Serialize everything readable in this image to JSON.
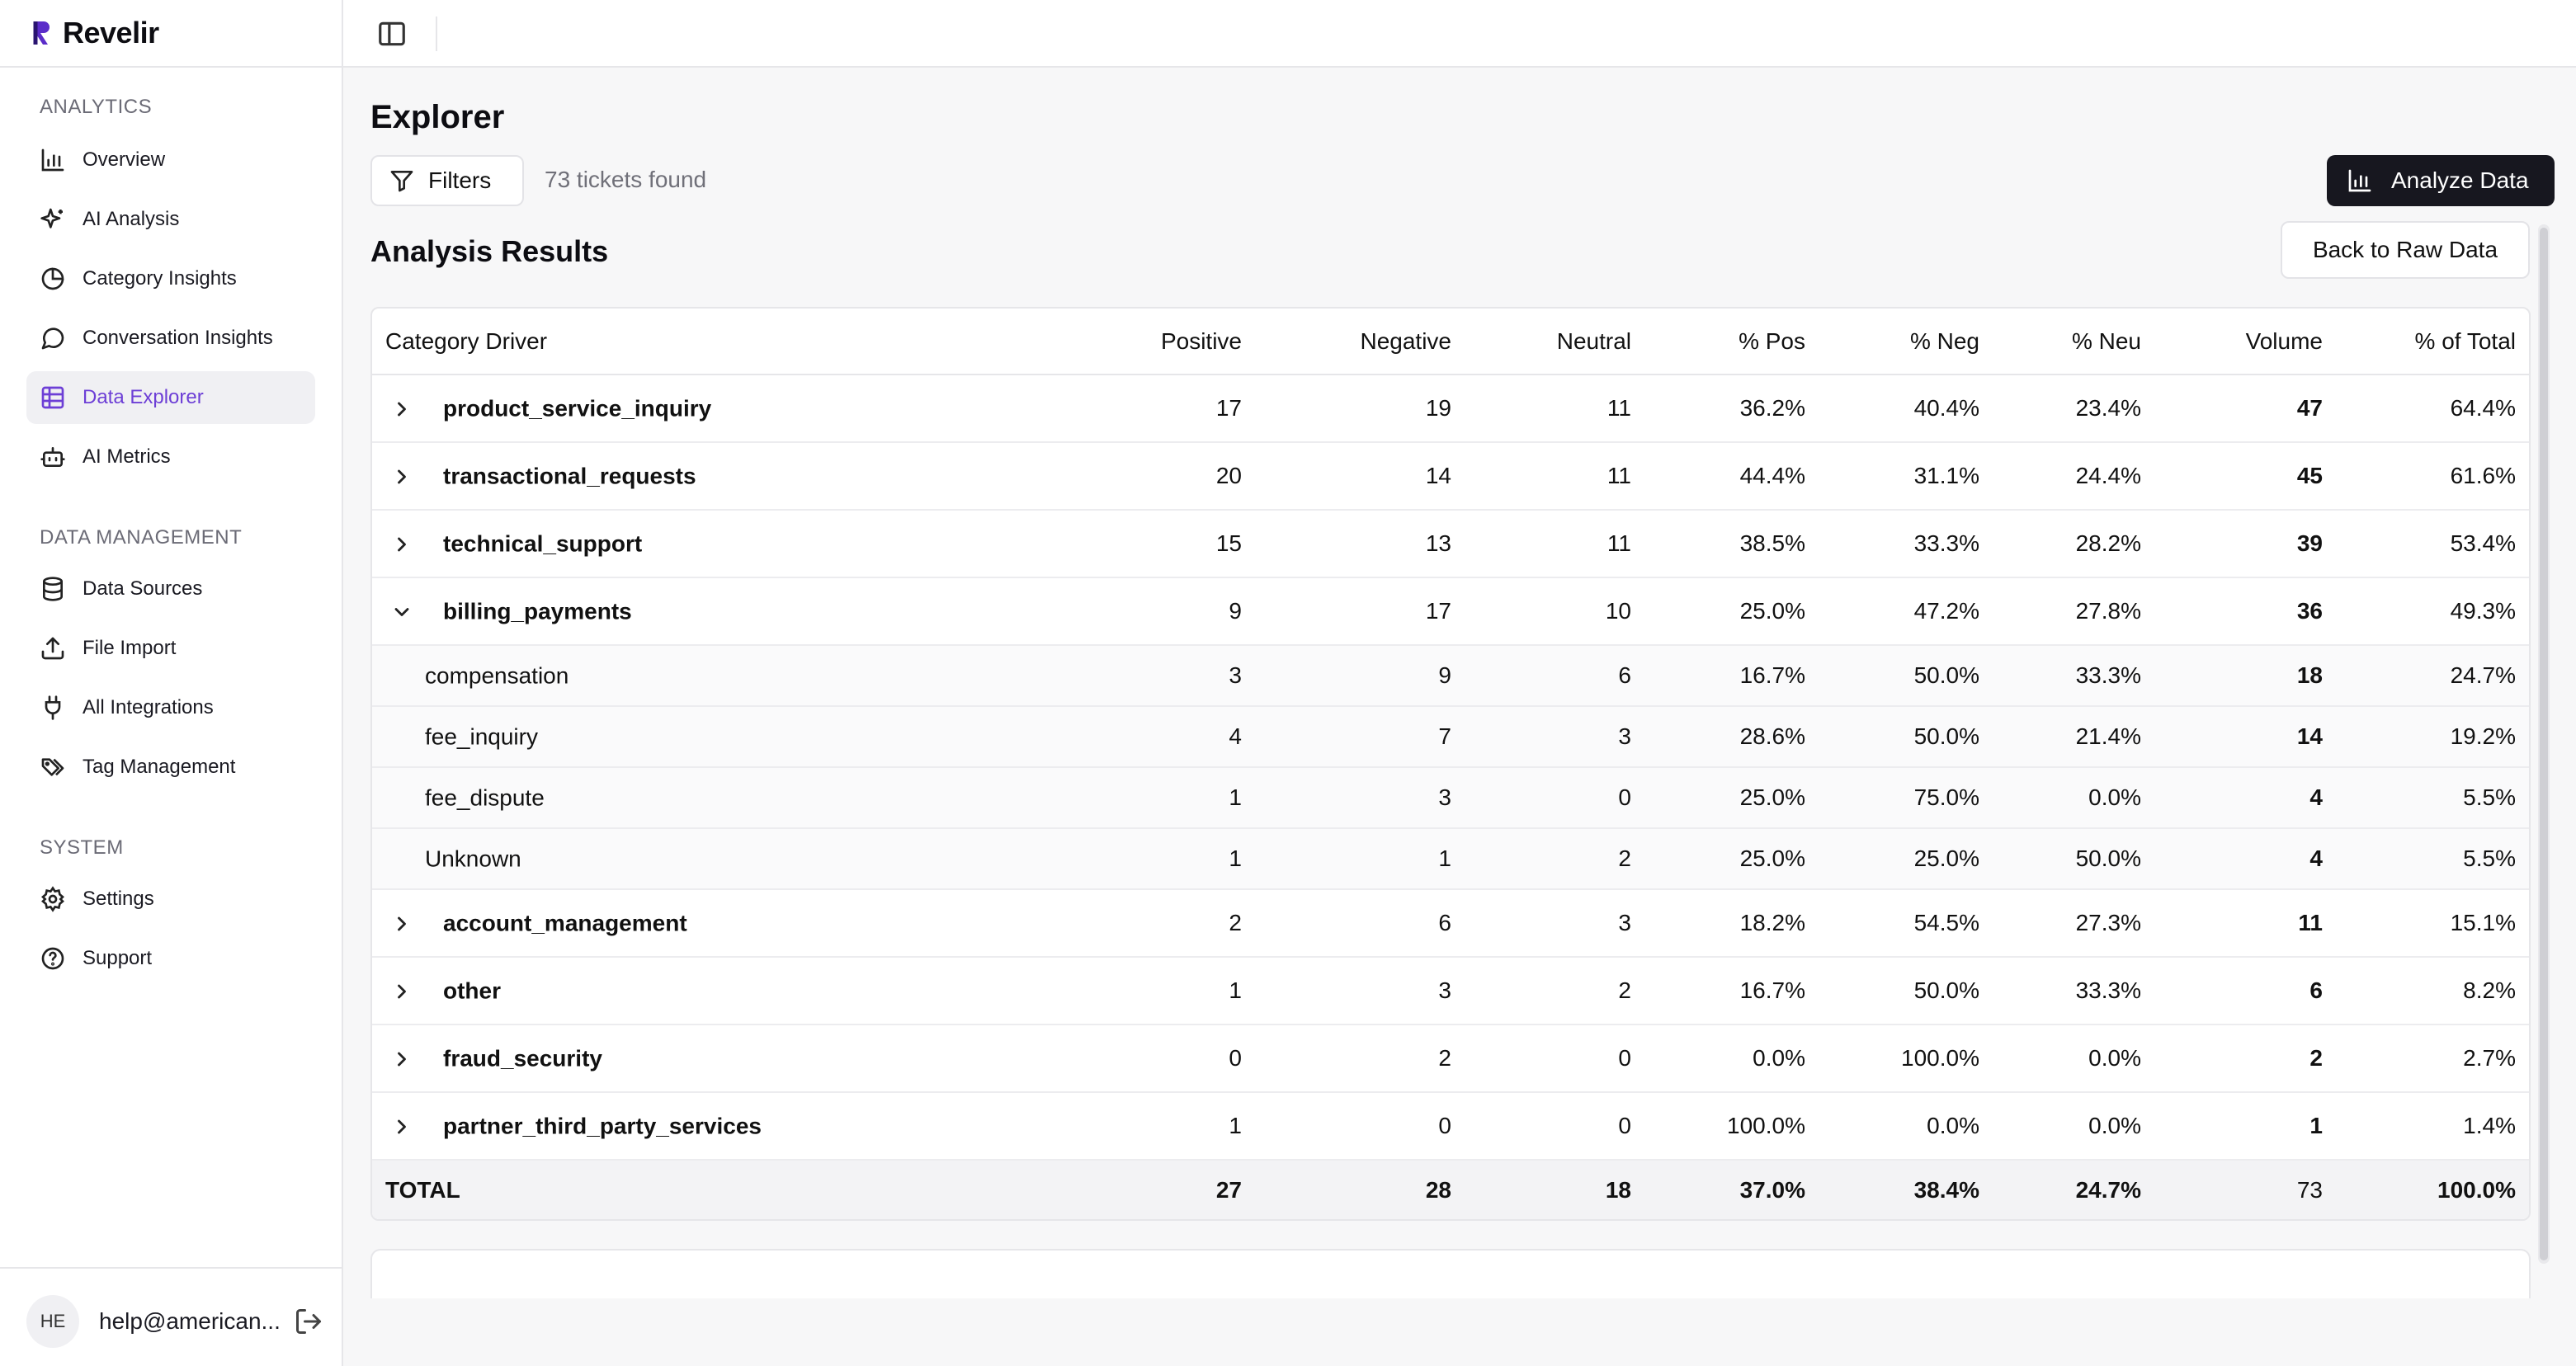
{
  "brand": {
    "name": "Revelir"
  },
  "sidebar": {
    "sections": [
      {
        "title": "ANALYTICS",
        "items": [
          {
            "label": "Overview",
            "icon": "bar-chart-icon"
          },
          {
            "label": "AI Analysis",
            "icon": "sparkles-icon"
          },
          {
            "label": "Category Insights",
            "icon": "pie-chart-icon"
          },
          {
            "label": "Conversation Insights",
            "icon": "chat-bubble-icon"
          },
          {
            "label": "Data Explorer",
            "icon": "table-grid-icon",
            "active": true
          },
          {
            "label": "AI Metrics",
            "icon": "bot-icon"
          }
        ]
      },
      {
        "title": "DATA MANAGEMENT",
        "items": [
          {
            "label": "Data Sources",
            "icon": "database-icon"
          },
          {
            "label": "File Import",
            "icon": "upload-icon"
          },
          {
            "label": "All Integrations",
            "icon": "plug-icon"
          },
          {
            "label": "Tag Management",
            "icon": "tags-icon"
          }
        ]
      },
      {
        "title": "SYSTEM",
        "items": [
          {
            "label": "Settings",
            "icon": "gear-icon"
          },
          {
            "label": "Support",
            "icon": "help-circle-icon"
          }
        ]
      }
    ],
    "user": {
      "initials": "HE",
      "email": "help@american..."
    }
  },
  "main": {
    "title": "Explorer",
    "filters_label": "Filters",
    "tickets_found": "73 tickets found",
    "analyze_label": "Analyze Data",
    "results_title": "Analysis Results",
    "back_label": "Back to Raw Data",
    "table": {
      "columns": [
        "Category Driver",
        "Positive",
        "Negative",
        "Neutral",
        "% Pos",
        "% Neg",
        "% Neu",
        "Volume",
        "% of Total"
      ],
      "rows": [
        {
          "type": "parent",
          "expanded": false,
          "cells": [
            "product_service_inquiry",
            "17",
            "19",
            "11",
            "36.2%",
            "40.4%",
            "23.4%",
            "47",
            "64.4%"
          ]
        },
        {
          "type": "parent",
          "expanded": false,
          "cells": [
            "transactional_requests",
            "20",
            "14",
            "11",
            "44.4%",
            "31.1%",
            "24.4%",
            "45",
            "61.6%"
          ]
        },
        {
          "type": "parent",
          "expanded": false,
          "cells": [
            "technical_support",
            "15",
            "13",
            "11",
            "38.5%",
            "33.3%",
            "28.2%",
            "39",
            "53.4%"
          ]
        },
        {
          "type": "parent",
          "expanded": true,
          "cells": [
            "billing_payments",
            "9",
            "17",
            "10",
            "25.0%",
            "47.2%",
            "27.8%",
            "36",
            "49.3%"
          ]
        },
        {
          "type": "child",
          "cells": [
            "compensation",
            "3",
            "9",
            "6",
            "16.7%",
            "50.0%",
            "33.3%",
            "18",
            "24.7%"
          ]
        },
        {
          "type": "child",
          "cells": [
            "fee_inquiry",
            "4",
            "7",
            "3",
            "28.6%",
            "50.0%",
            "21.4%",
            "14",
            "19.2%"
          ]
        },
        {
          "type": "child",
          "cells": [
            "fee_dispute",
            "1",
            "3",
            "0",
            "25.0%",
            "75.0%",
            "0.0%",
            "4",
            "5.5%"
          ]
        },
        {
          "type": "child",
          "cells": [
            "Unknown",
            "1",
            "1",
            "2",
            "25.0%",
            "25.0%",
            "50.0%",
            "4",
            "5.5%"
          ]
        },
        {
          "type": "parent",
          "expanded": false,
          "cells": [
            "account_management",
            "2",
            "6",
            "3",
            "18.2%",
            "54.5%",
            "27.3%",
            "11",
            "15.1%"
          ]
        },
        {
          "type": "parent",
          "expanded": false,
          "cells": [
            "other",
            "1",
            "3",
            "2",
            "16.7%",
            "50.0%",
            "33.3%",
            "6",
            "8.2%"
          ]
        },
        {
          "type": "parent",
          "expanded": false,
          "cells": [
            "fraud_security",
            "0",
            "2",
            "0",
            "0.0%",
            "100.0%",
            "0.0%",
            "2",
            "2.7%"
          ]
        },
        {
          "type": "parent",
          "expanded": false,
          "cells": [
            "partner_third_party_services",
            "1",
            "0",
            "0",
            "100.0%",
            "0.0%",
            "0.0%",
            "1",
            "1.4%"
          ]
        }
      ],
      "total": [
        "TOTAL",
        "27",
        "28",
        "18",
        "37.0%",
        "38.4%",
        "24.7%",
        "73",
        "100.0%"
      ]
    }
  },
  "colors": {
    "accent": "#6d3fd6",
    "dark_button": "#17171f"
  }
}
